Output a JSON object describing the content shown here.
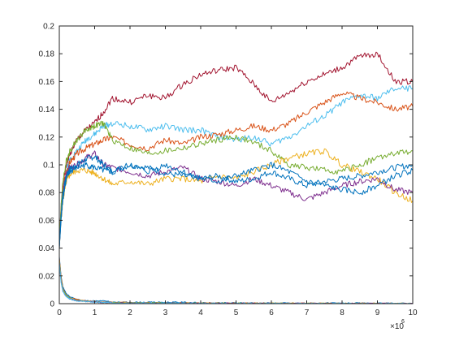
{
  "chart_data": {
    "type": "line",
    "title": "",
    "xlabel": "",
    "ylabel": "",
    "x_exponent_label": "×10",
    "x_exponent_power": "6",
    "xlim": [
      0,
      10
    ],
    "ylim": [
      0,
      0.2
    ],
    "xticks": [
      "0",
      "1",
      "2",
      "3",
      "4",
      "5",
      "6",
      "7",
      "8",
      "9",
      "10"
    ],
    "yticks": [
      "0",
      "0.02",
      "0.04",
      "0.06",
      "0.08",
      "0.1",
      "0.12",
      "0.14",
      "0.16",
      "0.18",
      "0.2"
    ],
    "grid": false,
    "legend": "none",
    "x": [
      0,
      0.05,
      0.1,
      0.2,
      0.3,
      0.5,
      0.75,
      1,
      1.25,
      1.5,
      2,
      2.5,
      3,
      3.5,
      4,
      4.5,
      5,
      5.5,
      6,
      6.5,
      7,
      7.5,
      8,
      8.5,
      9,
      9.5,
      10
    ],
    "series": [
      {
        "color": "#A2142F",
        "values": [
          0.045,
          0.07,
          0.085,
          0.1,
          0.108,
          0.118,
          0.125,
          0.13,
          0.138,
          0.148,
          0.145,
          0.15,
          0.148,
          0.158,
          0.165,
          0.168,
          0.17,
          0.158,
          0.145,
          0.152,
          0.16,
          0.165,
          0.17,
          0.178,
          0.18,
          0.16,
          0.16
        ]
      },
      {
        "color": "#4DBEEE",
        "values": [
          0.04,
          0.065,
          0.08,
          0.096,
          0.104,
          0.11,
          0.118,
          0.122,
          0.128,
          0.13,
          0.128,
          0.125,
          0.128,
          0.125,
          0.125,
          0.12,
          0.118,
          0.12,
          0.115,
          0.12,
          0.128,
          0.135,
          0.145,
          0.15,
          0.148,
          0.155,
          0.155
        ]
      },
      {
        "color": "#D95319",
        "values": [
          0.042,
          0.065,
          0.08,
          0.095,
          0.102,
          0.108,
          0.112,
          0.115,
          0.118,
          0.12,
          0.115,
          0.112,
          0.118,
          0.115,
          0.12,
          0.122,
          0.125,
          0.128,
          0.125,
          0.13,
          0.138,
          0.145,
          0.152,
          0.148,
          0.145,
          0.14,
          0.142
        ]
      },
      {
        "color": "#77AC30",
        "values": [
          0.044,
          0.07,
          0.088,
          0.103,
          0.11,
          0.118,
          0.125,
          0.128,
          0.13,
          0.118,
          0.112,
          0.108,
          0.11,
          0.112,
          0.115,
          0.118,
          0.12,
          0.116,
          0.11,
          0.1,
          0.098,
          0.096,
          0.095,
          0.1,
          0.105,
          0.108,
          0.11
        ]
      },
      {
        "color": "#EDB120",
        "values": [
          0.04,
          0.06,
          0.074,
          0.088,
          0.093,
          0.096,
          0.096,
          0.094,
          0.09,
          0.086,
          0.088,
          0.086,
          0.09,
          0.09,
          0.088,
          0.092,
          0.09,
          0.095,
          0.1,
          0.105,
          0.108,
          0.11,
          0.1,
          0.095,
          0.09,
          0.08,
          0.074
        ]
      },
      {
        "color": "#7E2F8E",
        "values": [
          0.04,
          0.062,
          0.078,
          0.094,
          0.098,
          0.1,
          0.105,
          0.108,
          0.1,
          0.098,
          0.095,
          0.092,
          0.095,
          0.098,
          0.09,
          0.088,
          0.085,
          0.09,
          0.085,
          0.08,
          0.075,
          0.08,
          0.085,
          0.088,
          0.09,
          0.082,
          0.08
        ]
      },
      {
        "color": "#0072BD",
        "values": [
          0.04,
          0.064,
          0.079,
          0.092,
          0.097,
          0.1,
          0.104,
          0.106,
          0.1,
          0.095,
          0.1,
          0.098,
          0.094,
          0.092,
          0.09,
          0.092,
          0.088,
          0.09,
          0.095,
          0.09,
          0.085,
          0.088,
          0.09,
          0.092,
          0.095,
          0.098,
          0.1
        ]
      },
      {
        "color": "#0072BD",
        "values": [
          0.04,
          0.06,
          0.076,
          0.09,
          0.095,
          0.098,
          0.1,
          0.098,
          0.096,
          0.095,
          0.1,
          0.095,
          0.1,
          0.095,
          0.09,
          0.088,
          0.092,
          0.096,
          0.1,
          0.095,
          0.088,
          0.085,
          0.082,
          0.08,
          0.085,
          0.092,
          0.096
        ]
      },
      {
        "color": "#0072BD",
        "values": [
          0.034,
          0.02,
          0.012,
          0.007,
          0.005,
          0.003,
          0.002,
          0.002,
          0.002,
          0.001,
          0.001,
          0.001,
          0.001,
          0.001,
          0.0005,
          0.0005,
          0.0005,
          0.0005,
          0.0004,
          0.0004,
          0.0003,
          0.0003,
          0.0003,
          0.0003,
          0.0002,
          0.0002,
          0.0002
        ]
      },
      {
        "color": "#D95319",
        "values": [
          0.033,
          0.019,
          0.011,
          0.006,
          0.004,
          0.003,
          0.002,
          0.0015,
          0.001,
          0.001,
          0.0008,
          0.0006,
          0.0005,
          0.0004,
          0.0004,
          0.0003,
          0.0003,
          0.0003,
          0.0002,
          0.0002,
          0.0002,
          0.0002,
          0.0001,
          0.0001,
          0.0001,
          0.0001,
          0.0001
        ]
      },
      {
        "color": "#EDB120",
        "values": [
          0.032,
          0.018,
          0.01,
          0.006,
          0.004,
          0.0025,
          0.0018,
          0.0014,
          0.001,
          0.0008,
          0.0006,
          0.0005,
          0.0004,
          0.0003,
          0.0003,
          0.0003,
          0.0002,
          0.0002,
          0.0002,
          0.0001,
          0.0001,
          0.0001,
          0.0001,
          0.0001,
          0.0001,
          0.0001,
          0.0001
        ]
      },
      {
        "color": "#77AC30",
        "values": [
          0.031,
          0.017,
          0.01,
          0.0055,
          0.0038,
          0.0025,
          0.0018,
          0.0013,
          0.001,
          0.0008,
          0.0006,
          0.0005,
          0.0004,
          0.0003,
          0.0003,
          0.0002,
          0.0002,
          0.0002,
          0.0002,
          0.0001,
          0.0001,
          0.0001,
          0.0001,
          0.0001,
          0.0001,
          0.0001,
          0.0001
        ]
      },
      {
        "color": "#7E2F8E",
        "values": [
          0.03,
          0.016,
          0.009,
          0.005,
          0.0035,
          0.0022,
          0.0016,
          0.0012,
          0.0009,
          0.0007,
          0.0005,
          0.0004,
          0.0003,
          0.0003,
          0.0002,
          0.0002,
          0.0002,
          0.0001,
          0.0001,
          0.0001,
          0.0001,
          0.0001,
          0.0001,
          0.0001,
          0.0001,
          0.0001,
          0.0001
        ]
      },
      {
        "color": "#4DBEEE",
        "values": [
          0.03,
          0.015,
          0.009,
          0.005,
          0.0033,
          0.002,
          0.0015,
          0.0011,
          0.0008,
          0.0006,
          0.0005,
          0.0004,
          0.0003,
          0.0002,
          0.0002,
          0.0002,
          0.0001,
          0.0001,
          0.0001,
          0.0001,
          0.0001,
          0.0001,
          0.0001,
          0.0001,
          0.0001,
          0.0001,
          0.0001
        ]
      }
    ]
  }
}
